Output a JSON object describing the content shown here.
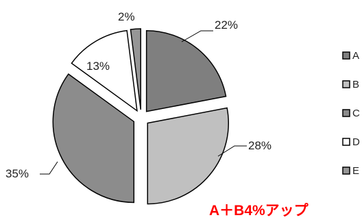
{
  "chart_data": {
    "type": "pie",
    "title": "",
    "categories": [
      "A",
      "B",
      "C",
      "D",
      "E"
    ],
    "values": [
      22,
      28,
      35,
      13,
      2
    ],
    "value_labels": [
      "22%",
      "28%",
      "35%",
      "13%",
      "2%"
    ],
    "colors": [
      "#7f7f7f",
      "#c0c0c0",
      "#8c8c8c",
      "#ffffff",
      "#969696"
    ],
    "start_angle_deg": 0,
    "exploded": true,
    "legend_placement": "right",
    "annotation": "A＋B4%アップ"
  }
}
